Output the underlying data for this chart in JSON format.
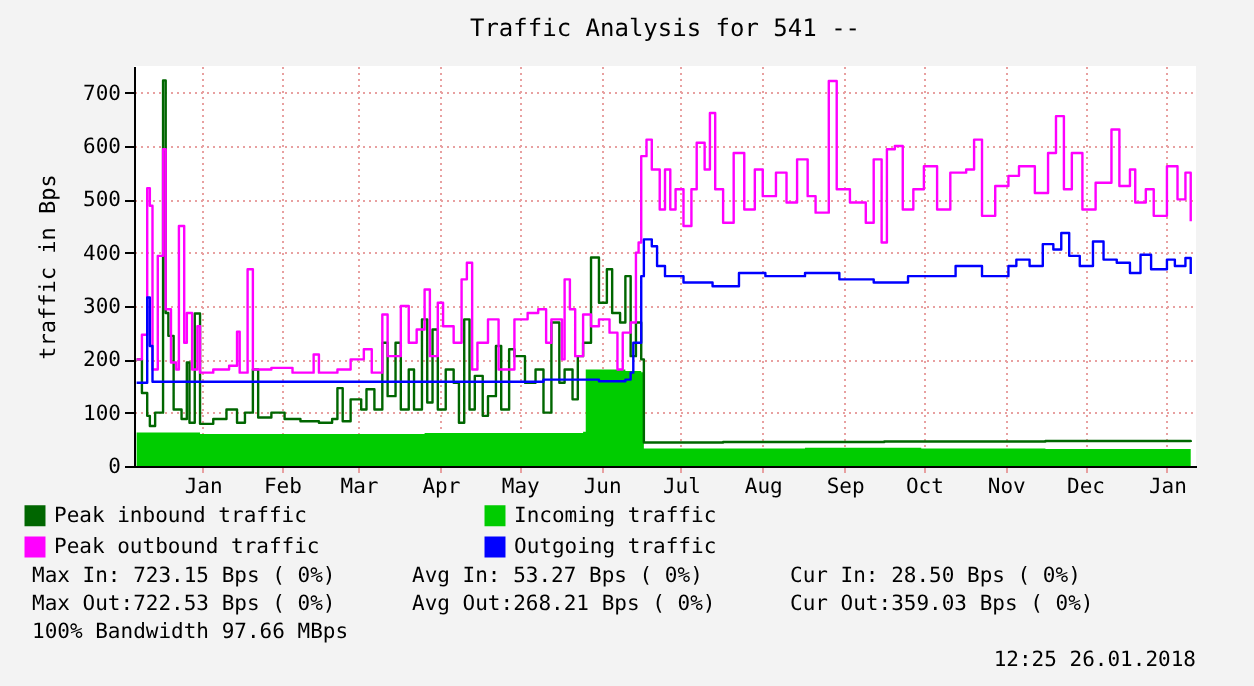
{
  "chart_data": {
    "type": "step",
    "title": "Traffic Analysis for 541 --",
    "ylabel": "traffic in Bps",
    "xlim": [
      "2016-12-21",
      "2018-01-27"
    ],
    "ylim": [
      0,
      750
    ],
    "yticks": [
      0,
      100,
      200,
      300,
      400,
      500,
      600,
      700
    ],
    "xticks": [
      {
        "value": "2017-01-16",
        "label": "Jan"
      },
      {
        "value": "2017-02-15",
        "label": "Feb"
      },
      {
        "value": "2017-03-16",
        "label": "Mar"
      },
      {
        "value": "2017-04-16",
        "label": "Apr"
      },
      {
        "value": "2017-05-16",
        "label": "May"
      },
      {
        "value": "2017-06-16",
        "label": "Jun"
      },
      {
        "value": "2017-07-16",
        "label": "Jul"
      },
      {
        "value": "2017-08-16",
        "label": "Aug"
      },
      {
        "value": "2017-09-16",
        "label": "Sep"
      },
      {
        "value": "2017-10-16",
        "label": "Oct"
      },
      {
        "value": "2017-11-16",
        "label": "Nov"
      },
      {
        "value": "2017-12-16",
        "label": "Dec"
      },
      {
        "value": "2018-01-16",
        "label": "Jan"
      }
    ],
    "grid": true,
    "legend": "bottom",
    "series": [
      {
        "name": "Peak inbound traffic",
        "color": "#006600",
        "x": [
          "2016-12-22",
          "2016-12-24",
          "2016-12-26",
          "2016-12-27",
          "2016-12-29",
          "2017-01-01",
          "2017-01-02",
          "2017-01-03",
          "2017-01-05",
          "2017-01-08",
          "2017-01-10",
          "2017-01-11",
          "2017-01-13",
          "2017-01-15",
          "2017-01-20",
          "2017-01-25",
          "2017-01-29",
          "2017-02-01",
          "2017-02-04",
          "2017-02-06",
          "2017-02-11",
          "2017-02-16",
          "2017-02-22",
          "2017-03-01",
          "2017-03-06",
          "2017-03-08",
          "2017-03-10",
          "2017-03-13",
          "2017-03-17",
          "2017-03-19",
          "2017-03-22",
          "2017-03-25",
          "2017-03-27",
          "2017-03-30",
          "2017-04-01",
          "2017-04-04",
          "2017-04-06",
          "2017-04-09",
          "2017-04-11",
          "2017-04-13",
          "2017-04-15",
          "2017-04-18",
          "2017-04-21",
          "2017-04-23",
          "2017-04-25",
          "2017-04-27",
          "2017-04-29",
          "2017-05-02",
          "2017-05-04",
          "2017-05-07",
          "2017-05-09",
          "2017-05-12",
          "2017-05-14",
          "2017-05-18",
          "2017-05-22",
          "2017-05-25",
          "2017-05-28",
          "2017-05-31",
          "2017-06-02",
          "2017-06-05",
          "2017-06-07",
          "2017-06-09",
          "2017-06-12",
          "2017-06-15",
          "2017-06-18",
          "2017-06-20",
          "2017-06-23",
          "2017-06-25",
          "2017-06-27",
          "2017-06-29",
          "2017-07-01",
          "2017-07-02",
          "2017-08-01",
          "2017-09-01",
          "2017-10-01",
          "2017-11-01",
          "2017-12-01",
          "2018-01-25"
        ],
        "values": [
          200,
          137,
          94,
          75,
          100,
          723,
          287,
          244,
          106,
          88,
          194,
          81,
          286,
          79,
          88,
          106,
          81,
          100,
          181,
          91,
          100,
          88,
          84,
          81,
          88,
          146,
          84,
          125,
          106,
          144,
          106,
          231,
          131,
          231,
          106,
          181,
          106,
          275,
          119,
          256,
          106,
          181,
          156,
          81,
          275,
          106,
          169,
          94,
          131,
          225,
          106,
          219,
          206,
          156,
          181,
          100,
          269,
          156,
          181,
          125,
          206,
          231,
          391,
          306,
          369,
          287,
          269,
          356,
          206,
          269,
          200,
          44,
          45,
          45,
          46,
          46,
          47,
          45
        ]
      },
      {
        "name": "Incoming traffic",
        "color": "#00cc00",
        "type": "area",
        "x": [
          "2016-12-22",
          "2017-01-15",
          "2017-03-01",
          "2017-04-10",
          "2017-05-20",
          "2017-06-09",
          "2017-06-10",
          "2017-06-25",
          "2017-07-01",
          "2017-07-02",
          "2017-09-01",
          "2017-10-15",
          "2017-12-01",
          "2018-01-25"
        ],
        "values": [
          63,
          60,
          60,
          62,
          62,
          64,
          181,
          178,
          176,
          33,
          34,
          33,
          32,
          32
        ]
      },
      {
        "name": "Peak outbound traffic",
        "color": "#ff00ff",
        "x": [
          "2016-12-22",
          "2016-12-24",
          "2016-12-26",
          "2016-12-27",
          "2016-12-28",
          "2016-12-30",
          "2017-01-01",
          "2017-01-02",
          "2017-01-04",
          "2017-01-06",
          "2017-01-07",
          "2017-01-09",
          "2017-01-10",
          "2017-01-12",
          "2017-01-14",
          "2017-01-15",
          "2017-01-20",
          "2017-01-26",
          "2017-01-29",
          "2017-01-30",
          "2017-02-02",
          "2017-02-04",
          "2017-02-11",
          "2017-02-19",
          "2017-02-27",
          "2017-03-01",
          "2017-03-08",
          "2017-03-13",
          "2017-03-18",
          "2017-03-21",
          "2017-03-25",
          "2017-03-27",
          "2017-04-01",
          "2017-04-04",
          "2017-04-07",
          "2017-04-10",
          "2017-04-12",
          "2017-04-15",
          "2017-04-17",
          "2017-04-21",
          "2017-04-24",
          "2017-04-26",
          "2017-04-28",
          "2017-04-30",
          "2017-05-04",
          "2017-05-08",
          "2017-05-14",
          "2017-05-19",
          "2017-05-23",
          "2017-05-26",
          "2017-05-28",
          "2017-06-01",
          "2017-06-02",
          "2017-06-04",
          "2017-06-06",
          "2017-06-09",
          "2017-06-12",
          "2017-06-15",
          "2017-06-19",
          "2017-06-22",
          "2017-06-24",
          "2017-06-27",
          "2017-06-29",
          "2017-06-30",
          "2017-07-01",
          "2017-07-03",
          "2017-07-05",
          "2017-07-08",
          "2017-07-10",
          "2017-07-12",
          "2017-07-14",
          "2017-07-17",
          "2017-07-20",
          "2017-07-22",
          "2017-07-25",
          "2017-07-27",
          "2017-07-29",
          "2017-08-01",
          "2017-08-05",
          "2017-08-09",
          "2017-08-13",
          "2017-08-16",
          "2017-08-21",
          "2017-08-25",
          "2017-08-29",
          "2017-09-02",
          "2017-09-05",
          "2017-09-10",
          "2017-09-13",
          "2017-09-18",
          "2017-09-24",
          "2017-09-27",
          "2017-09-30",
          "2017-10-02",
          "2017-10-05",
          "2017-10-08",
          "2017-10-12",
          "2017-10-16",
          "2017-10-21",
          "2017-10-26",
          "2017-11-01",
          "2017-11-04",
          "2017-11-07",
          "2017-11-12",
          "2017-11-17",
          "2017-11-21",
          "2017-11-27",
          "2017-12-02",
          "2017-12-05",
          "2017-12-08",
          "2017-12-11",
          "2017-12-15",
          "2017-12-20",
          "2017-12-26",
          "2017-12-29",
          "2018-01-02",
          "2018-01-04",
          "2018-01-08",
          "2018-01-11",
          "2018-01-16",
          "2018-01-20",
          "2018-01-23",
          "2018-01-25"
        ],
        "values": [
          200,
          246,
          521,
          488,
          181,
          394,
          594,
          294,
          194,
          181,
          450,
          231,
          287,
          181,
          262,
          175,
          181,
          188,
          252,
          175,
          369,
          181,
          184,
          175,
          209,
          175,
          181,
          200,
          219,
          175,
          284,
          206,
          300,
          231,
          256,
          331,
          206,
          306,
          262,
          231,
          350,
          381,
          181,
          231,
          275,
          181,
          275,
          287,
          294,
          231,
          275,
          200,
          350,
          294,
          206,
          284,
          262,
          275,
          250,
          181,
          250,
          269,
          400,
          419,
          581,
          612,
          556,
          481,
          556,
          481,
          519,
          450,
          519,
          606,
          556,
          662,
          519,
          456,
          587,
          481,
          556,
          506,
          550,
          494,
          575,
          506,
          475,
          722,
          519,
          494,
          456,
          575,
          419,
          594,
          600,
          481,
          519,
          562,
          481,
          550,
          556,
          612,
          469,
          525,
          544,
          562,
          512,
          587,
          656,
          519,
          587,
          481,
          531,
          631,
          525,
          556,
          494,
          519,
          469,
          562,
          500,
          550,
          459
        ]
      },
      {
        "name": "Outgoing traffic",
        "color": "#0000ff",
        "x": [
          "2016-12-22",
          "2016-12-26",
          "2016-12-27",
          "2016-12-28",
          "2017-03-01",
          "2017-05-25",
          "2017-06-15",
          "2017-06-25",
          "2017-06-27",
          "2017-06-28",
          "2017-07-01",
          "2017-07-02",
          "2017-07-05",
          "2017-07-07",
          "2017-07-10",
          "2017-07-17",
          "2017-07-28",
          "2017-08-07",
          "2017-08-17",
          "2017-09-01",
          "2017-09-14",
          "2017-09-27",
          "2017-10-10",
          "2017-10-22",
          "2017-10-28",
          "2017-11-07",
          "2017-11-17",
          "2017-11-20",
          "2017-11-25",
          "2017-11-30",
          "2017-12-04",
          "2017-12-07",
          "2017-12-10",
          "2017-12-14",
          "2017-12-19",
          "2017-12-23",
          "2017-12-28",
          "2018-01-02",
          "2018-01-06",
          "2018-01-10",
          "2018-01-16",
          "2018-01-19",
          "2018-01-23",
          "2018-01-25"
        ],
        "values": [
          156,
          316,
          225,
          158,
          158,
          162,
          159,
          162,
          175,
          231,
          356,
          425,
          412,
          375,
          356,
          344,
          337,
          362,
          356,
          362,
          350,
          344,
          356,
          356,
          375,
          356,
          375,
          387,
          375,
          416,
          406,
          437,
          394,
          375,
          421,
          387,
          381,
          362,
          396,
          369,
          387,
          375,
          390,
          360
        ]
      }
    ],
    "annotations": [
      "Max In: 723.15 Bps ( 0%)",
      "Avg In: 53.27 Bps ( 0%)",
      "Cur In: 28.50 Bps ( 0%)",
      "Max Out:722.53 Bps ( 0%)",
      "Avg Out:268.21 Bps ( 0%)",
      "Cur Out:359.03 Bps ( 0%)",
      "100% Bandwidth 97.66 MBps",
      "12:25 26.01.2018"
    ]
  }
}
